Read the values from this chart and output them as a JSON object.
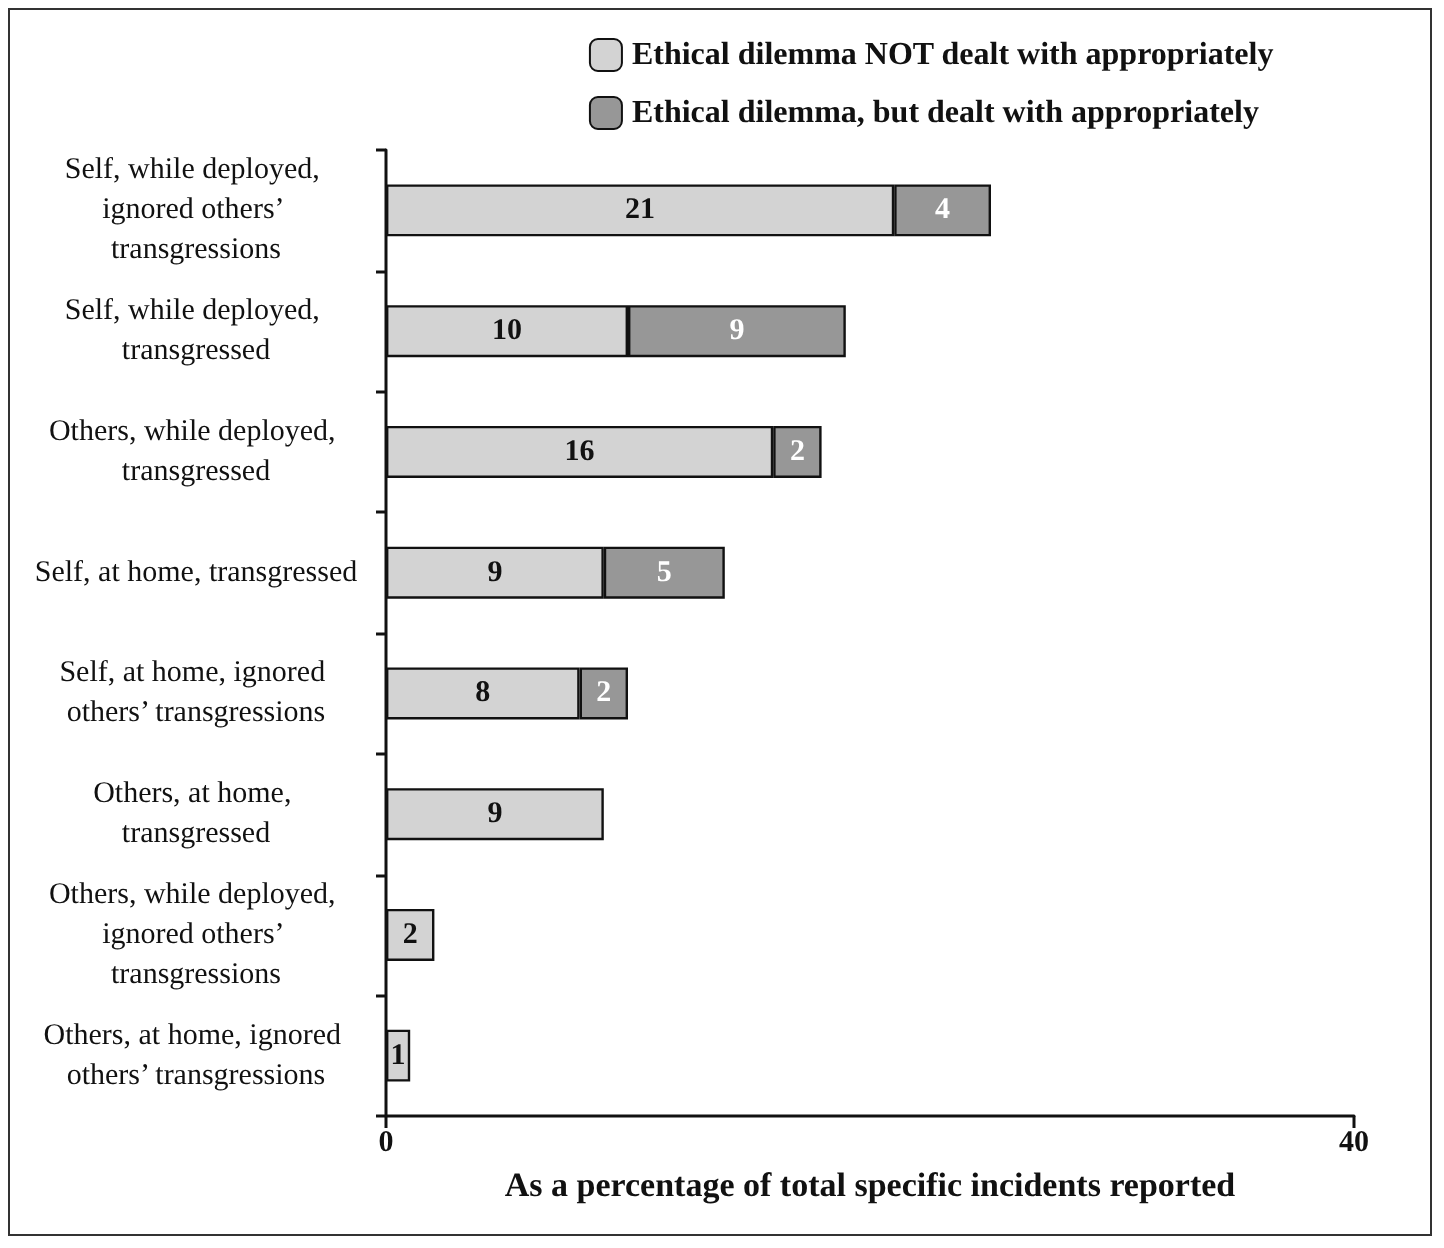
{
  "chart_data": {
    "type": "bar",
    "orientation": "horizontal",
    "stacked": true,
    "data_labels": true,
    "legend": "top right",
    "grid": false,
    "xlabel": "As a percentage of total specific incidents reported",
    "categories": [
      "Self, while deployed, ignored others’ transgressions",
      "Self, while deployed, transgressed",
      "Others, while deployed, transgressed",
      "Self, at home, transgressed",
      "Self, at home, ignored others’ transgressions",
      "Others, at home, transgressed",
      "Others, while deployed, ignored others’ transgressions",
      "Others, at home, ignored others’ transgressions"
    ],
    "series": [
      {
        "name": "Ethical dilemma NOT dealt with appropriately",
        "color": "#d3d3d3",
        "values": [
          21,
          10,
          16,
          9,
          8,
          9,
          2,
          1
        ]
      },
      {
        "name": "Ethical dilemma, but dealt with appropriately",
        "color": "#979797",
        "values": [
          4,
          9,
          2,
          5,
          2,
          null,
          null,
          null
        ]
      }
    ],
    "xlim": [
      0,
      40
    ],
    "xticks": [
      0,
      40
    ]
  }
}
